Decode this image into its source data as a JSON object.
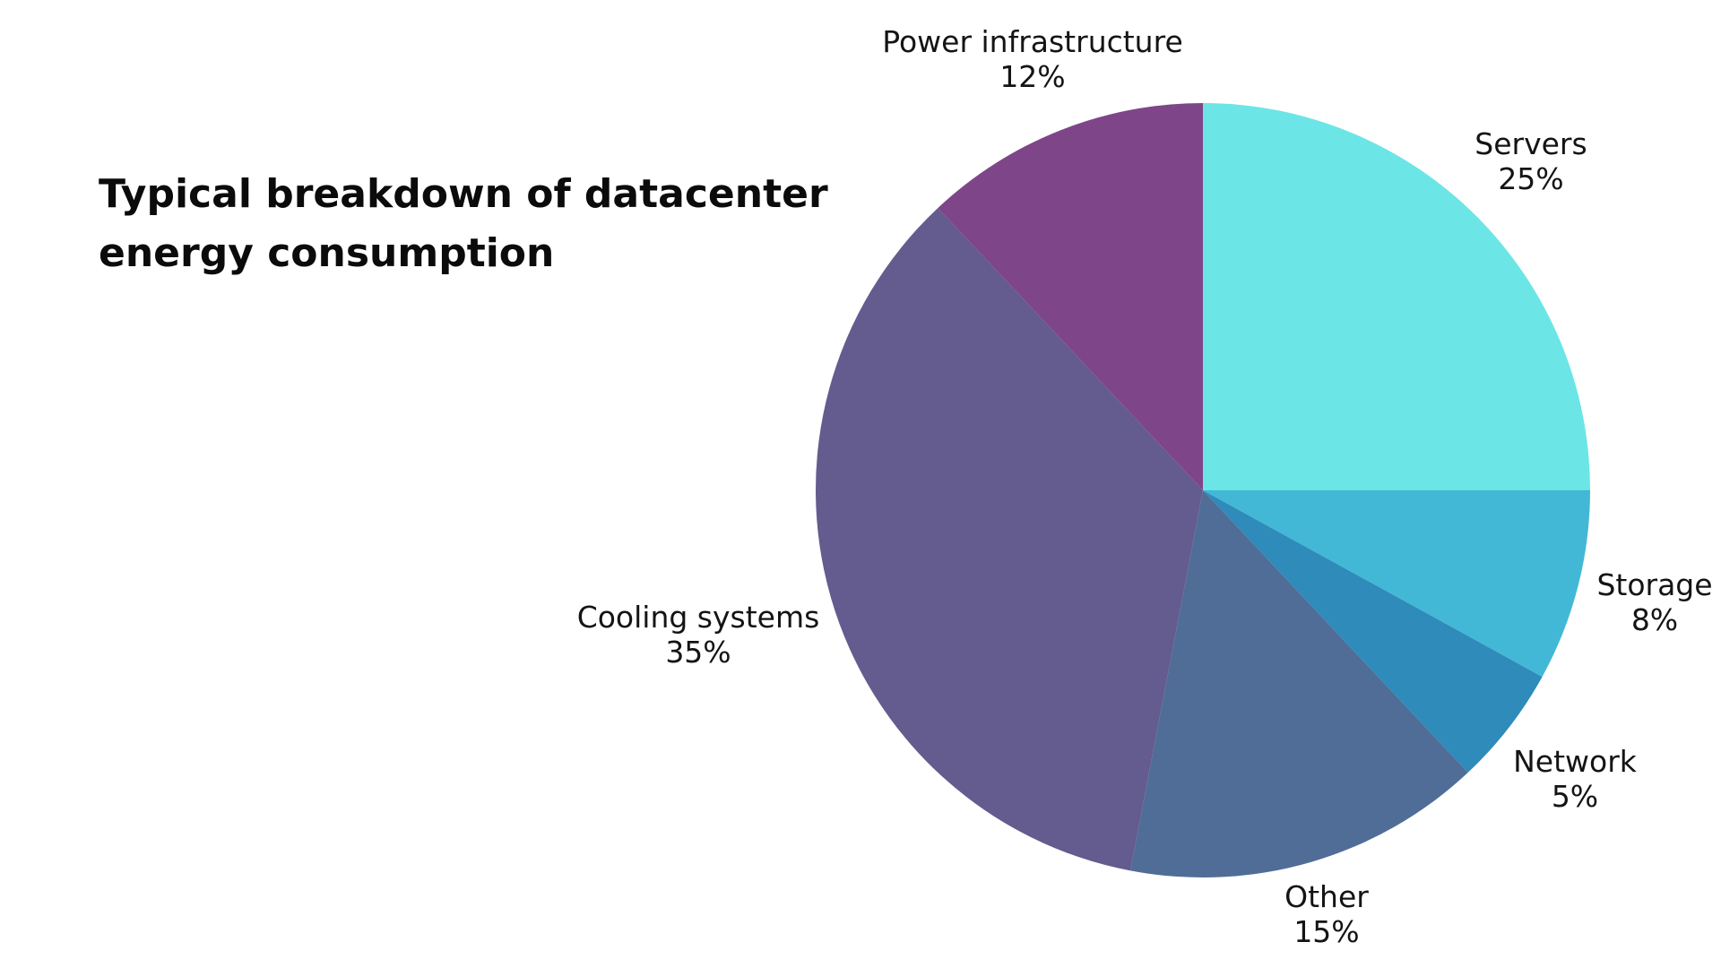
{
  "chart_data": {
    "type": "pie",
    "title": "Typical breakdown of datacenter energy consumption",
    "start_angle": "12 o'clock, clockwise",
    "slices": [
      {
        "label": "Servers",
        "value": 25,
        "value_label": "25%",
        "color": "#6ce5e6"
      },
      {
        "label": "Storage",
        "value": 8,
        "value_label": "8%",
        "color": "#43b8d6"
      },
      {
        "label": "Network",
        "value": 5,
        "value_label": "5%",
        "color": "#2e8bba"
      },
      {
        "label": "Other",
        "value": 15,
        "value_label": "15%",
        "color": "#4f6d97"
      },
      {
        "label": "Cooling systems",
        "value": 35,
        "value_label": "35%",
        "color": "#645b8f"
      },
      {
        "label": "Power infrastructure",
        "value": 12,
        "value_label": "12%",
        "color": "#7f4589"
      }
    ]
  }
}
